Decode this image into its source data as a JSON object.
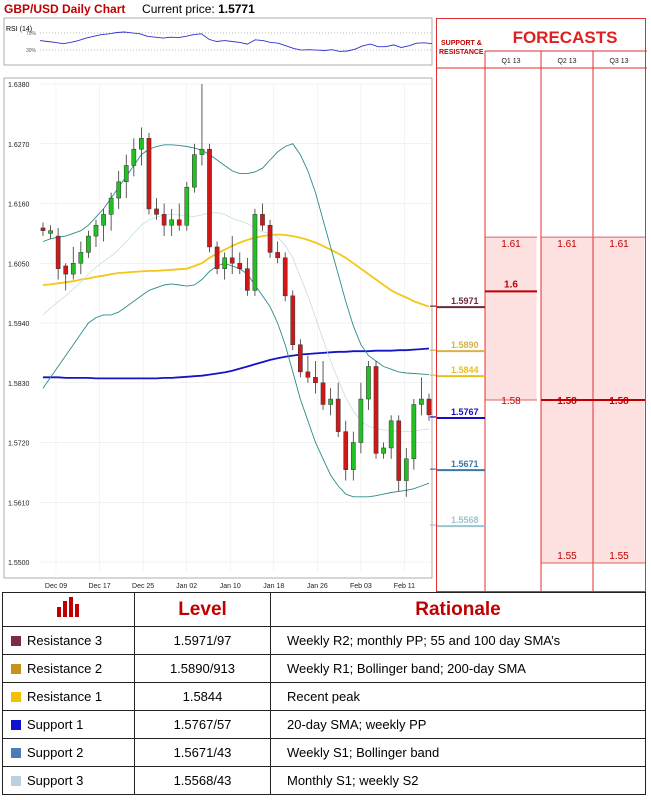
{
  "header": {
    "title": "GBP/USD Daily Chart",
    "price_label": "Current price:",
    "price_value": "1.5771"
  },
  "chart_data": {
    "type": "candlestick",
    "rsi_label": "RSI (14)",
    "rsi_ticks": [
      "70%",
      "30%"
    ],
    "price_ticks": [
      "1.6380",
      "1.6270",
      "1.6160",
      "1.6050",
      "1.5940",
      "1.5830",
      "1.5720",
      "1.5610",
      "1.5500"
    ],
    "ylim": [
      1.55,
      1.638
    ],
    "x_labels": [
      "Dec 09",
      "Dec 17",
      "Dec 25",
      "Jan 02",
      "Jan 10",
      "Jan 18",
      "Jan 26",
      "Feb 03",
      "Feb 11"
    ],
    "candles": [
      {
        "o": 1.6115,
        "h": 1.6125,
        "l": 1.61,
        "c": 1.611
      },
      {
        "o": 1.6105,
        "h": 1.612,
        "l": 1.6095,
        "c": 1.611
      },
      {
        "o": 1.61,
        "h": 1.6115,
        "l": 1.602,
        "c": 1.604
      },
      {
        "o": 1.6045,
        "h": 1.605,
        "l": 1.6,
        "c": 1.603
      },
      {
        "o": 1.603,
        "h": 1.608,
        "l": 1.602,
        "c": 1.605
      },
      {
        "o": 1.605,
        "h": 1.609,
        "l": 1.603,
        "c": 1.607
      },
      {
        "o": 1.607,
        "h": 1.611,
        "l": 1.606,
        "c": 1.61
      },
      {
        "o": 1.61,
        "h": 1.613,
        "l": 1.608,
        "c": 1.612
      },
      {
        "o": 1.612,
        "h": 1.615,
        "l": 1.609,
        "c": 1.614
      },
      {
        "o": 1.614,
        "h": 1.618,
        "l": 1.611,
        "c": 1.617
      },
      {
        "o": 1.617,
        "h": 1.622,
        "l": 1.615,
        "c": 1.62
      },
      {
        "o": 1.62,
        "h": 1.625,
        "l": 1.617,
        "c": 1.623
      },
      {
        "o": 1.623,
        "h": 1.628,
        "l": 1.621,
        "c": 1.626
      },
      {
        "o": 1.626,
        "h": 1.63,
        "l": 1.623,
        "c": 1.628
      },
      {
        "o": 1.628,
        "h": 1.629,
        "l": 1.614,
        "c": 1.615
      },
      {
        "o": 1.615,
        "h": 1.617,
        "l": 1.613,
        "c": 1.614
      },
      {
        "o": 1.614,
        "h": 1.616,
        "l": 1.61,
        "c": 1.612
      },
      {
        "o": 1.612,
        "h": 1.615,
        "l": 1.61,
        "c": 1.613
      },
      {
        "o": 1.613,
        "h": 1.616,
        "l": 1.611,
        "c": 1.612
      },
      {
        "o": 1.612,
        "h": 1.62,
        "l": 1.611,
        "c": 1.619
      },
      {
        "o": 1.619,
        "h": 1.627,
        "l": 1.618,
        "c": 1.625
      },
      {
        "o": 1.625,
        "h": 1.638,
        "l": 1.623,
        "c": 1.626
      },
      {
        "o": 1.626,
        "h": 1.627,
        "l": 1.607,
        "c": 1.608
      },
      {
        "o": 1.608,
        "h": 1.609,
        "l": 1.603,
        "c": 1.604
      },
      {
        "o": 1.604,
        "h": 1.607,
        "l": 1.602,
        "c": 1.606
      },
      {
        "o": 1.606,
        "h": 1.61,
        "l": 1.603,
        "c": 1.605
      },
      {
        "o": 1.605,
        "h": 1.607,
        "l": 1.603,
        "c": 1.604
      },
      {
        "o": 1.604,
        "h": 1.606,
        "l": 1.599,
        "c": 1.6
      },
      {
        "o": 1.6,
        "h": 1.615,
        "l": 1.599,
        "c": 1.614
      },
      {
        "o": 1.614,
        "h": 1.616,
        "l": 1.611,
        "c": 1.612
      },
      {
        "o": 1.612,
        "h": 1.613,
        "l": 1.606,
        "c": 1.607
      },
      {
        "o": 1.607,
        "h": 1.609,
        "l": 1.605,
        "c": 1.606
      },
      {
        "o": 1.606,
        "h": 1.607,
        "l": 1.598,
        "c": 1.599
      },
      {
        "o": 1.599,
        "h": 1.6,
        "l": 1.589,
        "c": 1.59
      },
      {
        "o": 1.59,
        "h": 1.591,
        "l": 1.584,
        "c": 1.585
      },
      {
        "o": 1.585,
        "h": 1.588,
        "l": 1.583,
        "c": 1.584
      },
      {
        "o": 1.584,
        "h": 1.587,
        "l": 1.581,
        "c": 1.583
      },
      {
        "o": 1.583,
        "h": 1.587,
        "l": 1.578,
        "c": 1.579
      },
      {
        "o": 1.579,
        "h": 1.582,
        "l": 1.577,
        "c": 1.58
      },
      {
        "o": 1.58,
        "h": 1.583,
        "l": 1.573,
        "c": 1.574
      },
      {
        "o": 1.574,
        "h": 1.576,
        "l": 1.565,
        "c": 1.567
      },
      {
        "o": 1.567,
        "h": 1.574,
        "l": 1.565,
        "c": 1.572
      },
      {
        "o": 1.572,
        "h": 1.583,
        "l": 1.57,
        "c": 1.58
      },
      {
        "o": 1.58,
        "h": 1.587,
        "l": 1.578,
        "c": 1.586
      },
      {
        "o": 1.586,
        "h": 1.587,
        "l": 1.569,
        "c": 1.57
      },
      {
        "o": 1.57,
        "h": 1.572,
        "l": 1.569,
        "c": 1.571
      },
      {
        "o": 1.571,
        "h": 1.577,
        "l": 1.569,
        "c": 1.576
      },
      {
        "o": 1.576,
        "h": 1.577,
        "l": 1.563,
        "c": 1.565
      },
      {
        "o": 1.565,
        "h": 1.571,
        "l": 1.562,
        "c": 1.569
      },
      {
        "o": 1.569,
        "h": 1.58,
        "l": 1.567,
        "c": 1.579
      },
      {
        "o": 1.579,
        "h": 1.584,
        "l": 1.577,
        "c": 1.58
      },
      {
        "o": 1.58,
        "h": 1.581,
        "l": 1.576,
        "c": 1.5771
      }
    ],
    "series": [
      {
        "type": "ma",
        "color": "#f5c518",
        "values": [
          1.601,
          1.6011,
          1.6013,
          1.6015,
          1.6017,
          1.602,
          1.6022,
          1.6025,
          1.6027,
          1.603,
          1.6032,
          1.6033,
          1.6034,
          1.6035,
          1.6036,
          1.6036,
          1.6037,
          1.6038,
          1.6039,
          1.604,
          1.6045,
          1.605,
          1.606,
          1.6068,
          1.6075,
          1.6082,
          1.6088,
          1.6093,
          1.6097,
          1.61,
          1.6102,
          1.6103,
          1.6102,
          1.61,
          1.6097,
          1.6093,
          1.6088,
          1.6082,
          1.6075,
          1.6068,
          1.606,
          1.605,
          1.604,
          1.603,
          1.602,
          1.601,
          1.6,
          1.5993,
          1.5987,
          1.598,
          1.5975,
          1.597
        ]
      },
      {
        "type": "ma",
        "color": "#1414c8",
        "values": [
          1.584,
          1.584,
          1.584,
          1.5839,
          1.5839,
          1.5839,
          1.5839,
          1.5838,
          1.5838,
          1.5838,
          1.5838,
          1.5838,
          1.5838,
          1.5838,
          1.5838,
          1.5838,
          1.5839,
          1.5839,
          1.584,
          1.5841,
          1.5842,
          1.5843,
          1.5845,
          1.5847,
          1.5849,
          1.5852,
          1.5856,
          1.586,
          1.5864,
          1.5868,
          1.5872,
          1.5875,
          1.5878,
          1.588,
          1.5882,
          1.5883,
          1.5884,
          1.5885,
          1.5886,
          1.5887,
          1.5887,
          1.5888,
          1.5888,
          1.5888,
          1.5889,
          1.5889,
          1.5889,
          1.589,
          1.589,
          1.5891,
          1.5892,
          1.5893
        ]
      },
      {
        "type": "band",
        "color": "#2e8b8b",
        "values": [
          1.609,
          1.6095,
          1.6098,
          1.61,
          1.6105,
          1.611,
          1.612,
          1.6135,
          1.615,
          1.617,
          1.619,
          1.621,
          1.623,
          1.625,
          1.626,
          1.6265,
          1.6268,
          1.6268,
          1.6267,
          1.6265,
          1.6262,
          1.6258,
          1.625,
          1.624,
          1.623,
          1.622,
          1.6215,
          1.6215,
          1.6218,
          1.6225,
          1.624,
          1.6255,
          1.6265,
          1.627,
          1.625,
          1.622,
          1.618,
          1.613,
          1.608,
          1.603,
          1.598,
          1.5935,
          1.59,
          1.588,
          1.587,
          1.586,
          1.5855,
          1.585,
          1.5848,
          1.5847,
          1.5846,
          1.5845
        ]
      },
      {
        "type": "band",
        "color": "#2e8b8b",
        "values": [
          1.582,
          1.584,
          1.586,
          1.588,
          1.59,
          1.592,
          1.594,
          1.595,
          1.5955,
          1.5955,
          1.596,
          1.597,
          1.598,
          1.599,
          1.6,
          1.6005,
          1.601,
          1.6012,
          1.601,
          1.6008,
          1.601,
          1.602,
          1.6035,
          1.6045,
          1.605,
          1.6045,
          1.604,
          1.603,
          1.601,
          1.599,
          1.597,
          1.594,
          1.59,
          1.585,
          1.58,
          1.576,
          1.572,
          1.569,
          1.566,
          1.564,
          1.5625,
          1.562,
          1.562,
          1.562,
          1.5622,
          1.5625,
          1.5628,
          1.563,
          1.5632,
          1.5635,
          1.564,
          1.5645
        ]
      },
      {
        "type": "band",
        "color": "#c8dede",
        "values": [
          1.5955,
          1.5968,
          1.5979,
          1.599,
          1.6003,
          1.6015,
          1.603,
          1.6043,
          1.6053,
          1.6063,
          1.6075,
          1.609,
          1.6105,
          1.612,
          1.613,
          1.6135,
          1.6139,
          1.614,
          1.6139,
          1.6137,
          1.6136,
          1.6139,
          1.6143,
          1.6143,
          1.614,
          1.6133,
          1.6128,
          1.6123,
          1.6114,
          1.6108,
          1.6105,
          1.6098,
          1.6083,
          1.606,
          1.6025,
          1.599,
          1.595,
          1.591,
          1.587,
          1.5835,
          1.5803,
          1.5778,
          1.576,
          1.575,
          1.5746,
          1.5743,
          1.5742,
          1.574,
          1.574,
          1.5741,
          1.5743,
          1.5745
        ]
      }
    ],
    "rsi_values": [
      52,
      50,
      48,
      45,
      48,
      52,
      58,
      62,
      66,
      68,
      71,
      72,
      70,
      68,
      62,
      60,
      58,
      60,
      59,
      62,
      66,
      68,
      55,
      50,
      52,
      50,
      48,
      44,
      54,
      52,
      48,
      46,
      40,
      34,
      30,
      31,
      30,
      29,
      31,
      27,
      28,
      32,
      40,
      44,
      38,
      38,
      42,
      36,
      40,
      46,
      47,
      45
    ],
    "levels": [
      {
        "value": 1.5971,
        "label": "1.5971",
        "color": "#6b2a3a"
      },
      {
        "value": 1.589,
        "label": "1.5890",
        "color": "#d9b04a"
      },
      {
        "value": 1.5844,
        "label": "1.5844",
        "color": "#e8c020"
      },
      {
        "value": 1.5767,
        "label": "1.5767",
        "color": "#1010c0"
      },
      {
        "value": 1.5671,
        "label": "1.5671",
        "color": "#3a78a8"
      },
      {
        "value": 1.5568,
        "label": "1.5568",
        "color": "#9cc4d0"
      }
    ]
  },
  "forecasts": {
    "side_label": "SUPPORT & RESISTANCE",
    "title": "FORECASTS",
    "columns": [
      "Q1 13",
      "Q2 13",
      "Q3 13"
    ],
    "rows": [
      {
        "value": 1.61,
        "cells": [
          "1.61",
          "1.61",
          "1.61"
        ]
      },
      {
        "value": 1.6,
        "cells": [
          "1.6",
          "",
          ""
        ]
      },
      {
        "value": 1.58,
        "cells": [
          "1.58",
          "1.58",
          "1.58"
        ]
      },
      {
        "value": 1.55,
        "cells": [
          "",
          "1.55",
          "1.55"
        ]
      }
    ],
    "shade": {
      "top": 1.61,
      "bottoms": [
        1.58,
        1.55,
        1.55
      ]
    }
  },
  "table": {
    "headers": [
      "Level",
      "Rationale"
    ],
    "icon": "bar-chart-icon",
    "rows": [
      {
        "name": "Resistance 3",
        "color": "#7b2c3e",
        "level": "1.5971/97",
        "rationale": "Weekly R2; monthly PP; 55 and 100 day SMA’s"
      },
      {
        "name": "Resistance 2",
        "color": "#c8921a",
        "level": "1.5890/913",
        "rationale": "Weekly R1; Bollinger band; 200-day SMA"
      },
      {
        "name": "Resistance 1",
        "color": "#f2c200",
        "level": "1.5844",
        "rationale": "Recent peak"
      },
      {
        "name": "Support 1",
        "color": "#1010d0",
        "level": "1.5767/57",
        "rationale": "20-day SMA; weekly PP"
      },
      {
        "name": "Support 2",
        "color": "#4a7fb5",
        "level": "1.5671/43",
        "rationale": "Weekly S1; Bollinger band"
      },
      {
        "name": "Support 3",
        "color": "#b8d0e0",
        "level": "1.5568/43",
        "rationale": "Monthly S1; weekly S2"
      }
    ]
  }
}
